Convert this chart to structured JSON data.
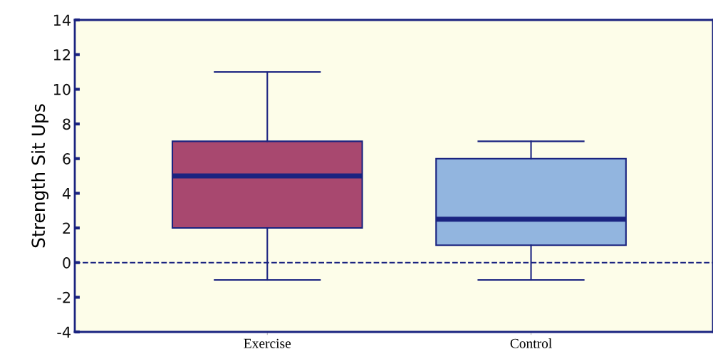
{
  "chart_data": {
    "type": "box",
    "ylabel": "Strength Sit Ups",
    "categories": [
      "Exercise",
      "Control"
    ],
    "boxes": [
      {
        "low": -1,
        "q1": 2,
        "median": 5,
        "q3": 7,
        "high": 11
      },
      {
        "low": -1,
        "q1": 1,
        "median": 2.5,
        "q3": 6,
        "high": 7
      }
    ],
    "colors": [
      "#a8486f",
      "#92b5df"
    ],
    "ylim": [
      -4,
      14
    ],
    "yticks": [
      -4,
      -2,
      0,
      2,
      4,
      6,
      8,
      10,
      12,
      14
    ],
    "ref_lines": [
      {
        "axis": "y",
        "value": 0,
        "color": "#1a2380",
        "line_style": "dashed"
      }
    ],
    "grid": false
  }
}
